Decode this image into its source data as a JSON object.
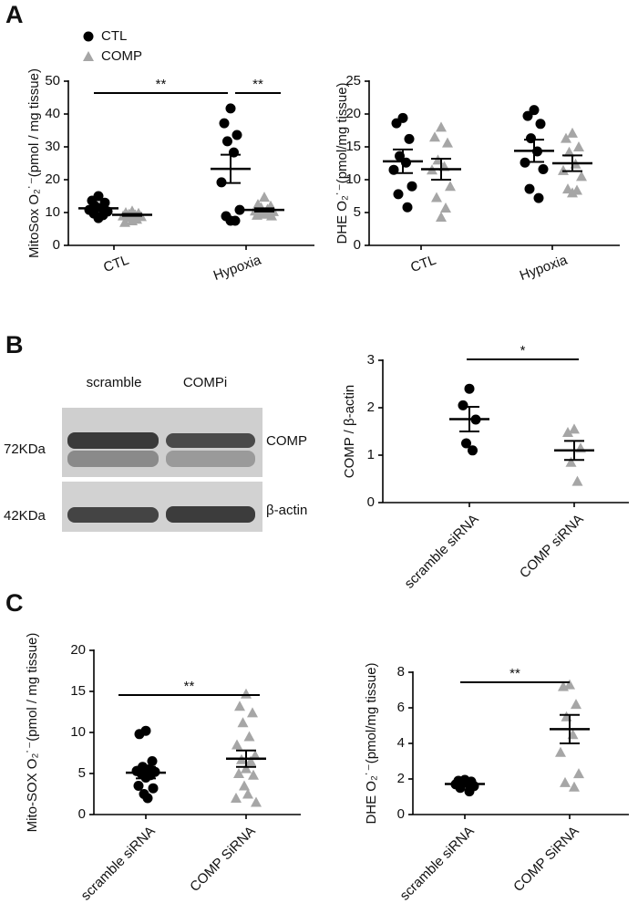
{
  "panel_labels": [
    "A",
    "B",
    "C"
  ],
  "blot": {
    "lanes": [
      "scramble",
      "COMPi"
    ],
    "rows": [
      {
        "size": "72KDa",
        "protein": "COMP"
      },
      {
        "size": "42KDa",
        "protein": "β-actin"
      }
    ]
  },
  "chart_data": [
    {
      "type": "dotplot",
      "ylabel": "MitoSox O₂˙⁻(pmol / mg tissue)",
      "categories": [
        "CTL",
        "Hypoxia"
      ],
      "ylim": [
        0,
        50
      ],
      "yticks": [
        0,
        10,
        20,
        30,
        40,
        50
      ],
      "annotations": [
        "**",
        "**"
      ],
      "series": [
        {
          "name": "CTL",
          "color": "#000000",
          "marker": "circle",
          "values": [
            [
              15,
              13.6,
              13,
              11.9,
              11.4,
              10.8,
              10.3,
              9.7,
              9.2,
              8.3
            ],
            [
              41.7,
              37.2,
              33.6,
              31.7,
              28.3,
              19.2,
              10.8,
              8.9,
              7.5,
              7.5
            ]
          ],
          "mean": [
            11.3,
            23.3
          ],
          "sem": [
            0.6,
            4.3
          ]
        },
        {
          "name": "COMP",
          "color": "#a6a6a6",
          "marker": "triangle",
          "values": [
            [
              10.5,
              10,
              9.8,
              9.5,
              9.3,
              9,
              8.8,
              8.5,
              8,
              7.5,
              7
            ],
            [
              14.7,
              12.5,
              12,
              11.5,
              11,
              10.5,
              10.3,
              10,
              9.8,
              9.5,
              9.2,
              9
            ]
          ],
          "mean": [
            9.3,
            10.8
          ],
          "sem": [
            0.3,
            0.5
          ]
        }
      ]
    },
    {
      "type": "dotplot",
      "ylabel": "DHE O₂˙⁻(pmol/mg tissue)",
      "categories": [
        "CTL",
        "Hypoxia"
      ],
      "ylim": [
        0,
        25
      ],
      "yticks": [
        0,
        5,
        10,
        15,
        20,
        25
      ],
      "annotations": [],
      "series": [
        {
          "color": "#000000",
          "marker": "circle",
          "values": [
            [
              19.4,
              18.6,
              16.2,
              13.6,
              12.6,
              11.5,
              9,
              7.8,
              5.8
            ],
            [
              20.6,
              19.7,
              18.5,
              16.3,
              14.3,
              12.6,
              11.6,
              8.6,
              7.2
            ]
          ],
          "mean": [
            12.8,
            14.4
          ],
          "sem": [
            1.8,
            1.7
          ]
        },
        {
          "color": "#a6a6a6",
          "marker": "triangle",
          "values": [
            [
              18,
              16.5,
              15.6,
              13,
              12,
              11.5,
              9,
              7.3,
              5.7,
              4.3
            ],
            [
              17.1,
              16.3,
              15,
              14.2,
              12.4,
              11.4,
              10.5,
              8.6,
              8.4,
              8
            ]
          ],
          "mean": [
            11.6,
            12.5
          ],
          "sem": [
            1.6,
            1.2
          ]
        }
      ]
    },
    {
      "type": "dotplot",
      "ylabel": "COMP / β-actin",
      "categories": [
        "scramble siRNA",
        "COMP siRNA"
      ],
      "ylim": [
        0,
        3
      ],
      "yticks": [
        0,
        1,
        2,
        3
      ],
      "annotations": [
        "*"
      ],
      "colors": [
        "#000000",
        "#a6a6a6"
      ],
      "markers": [
        "circle",
        "triangle"
      ],
      "values": [
        [
          2.4,
          2.05,
          1.75,
          1.25,
          1.1
        ],
        [
          1.55,
          1.48,
          1.15,
          0.85,
          0.45
        ]
      ],
      "mean": [
        1.76,
        1.1
      ],
      "sem": [
        0.26,
        0.2
      ]
    },
    {
      "type": "dotplot",
      "ylabel": "Mito-SOX O₂˙⁻(pmol / mg tissue)",
      "categories": [
        "scramble siRNA",
        "COMP SiRNA"
      ],
      "ylim": [
        0,
        20
      ],
      "yticks": [
        0,
        5,
        10,
        15,
        20
      ],
      "annotations": [
        "**"
      ],
      "colors": [
        "#000000",
        "#a6a6a6"
      ],
      "markers": [
        "circle",
        "triangle"
      ],
      "values": [
        [
          10.2,
          9.8,
          6.5,
          5.8,
          5.5,
          5.3,
          5.2,
          5,
          4.8,
          4.5,
          3.5,
          3.2,
          2.5,
          2
        ],
        [
          14.7,
          13.2,
          12.4,
          11.2,
          9.5,
          8.5,
          7.2,
          6.7,
          6.5,
          5.6,
          5,
          4.8,
          3.5,
          2.5,
          2,
          1.5
        ]
      ],
      "mean": [
        5.1,
        6.8
      ],
      "sem": [
        0.7,
        1
      ]
    },
    {
      "type": "dotplot",
      "ylabel": "DHE O₂˙⁻(pmol/mg tissue)",
      "categories": [
        "scramble siRNA",
        "COMP SiRNA"
      ],
      "ylim": [
        0,
        8
      ],
      "yticks": [
        0,
        2,
        4,
        6,
        8
      ],
      "annotations": [
        "**"
      ],
      "colors": [
        "#000000",
        "#a6a6a6"
      ],
      "markers": [
        "circle",
        "triangle"
      ],
      "values": [
        [
          1.95,
          1.9,
          1.85,
          1.8,
          1.75,
          1.7,
          1.6,
          1.5,
          1.3
        ],
        [
          7.3,
          7.2,
          6.2,
          5.5,
          4.5,
          3.5,
          2.3,
          1.8,
          1.55
        ]
      ],
      "mean": [
        1.72,
        4.8
      ],
      "sem": [
        0.07,
        0.8
      ]
    }
  ]
}
